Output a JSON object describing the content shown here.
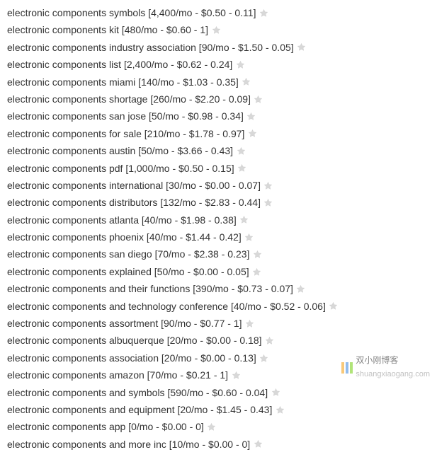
{
  "keywords": [
    {
      "term": "electronic components symbols",
      "volume": "4,400",
      "cpc": "0.50",
      "comp": "0.11"
    },
    {
      "term": "electronic components kit",
      "volume": "480",
      "cpc": "0.60",
      "comp": "1"
    },
    {
      "term": "electronic components industry association",
      "volume": "90",
      "cpc": "1.50",
      "comp": "0.05"
    },
    {
      "term": "electronic components list",
      "volume": "2,400",
      "cpc": "0.62",
      "comp": "0.24"
    },
    {
      "term": "electronic components miami",
      "volume": "140",
      "cpc": "1.03",
      "comp": "0.35"
    },
    {
      "term": "electronic components shortage",
      "volume": "260",
      "cpc": "2.20",
      "comp": "0.09"
    },
    {
      "term": "electronic components san jose",
      "volume": "50",
      "cpc": "0.98",
      "comp": "0.34"
    },
    {
      "term": "electronic components for sale",
      "volume": "210",
      "cpc": "1.78",
      "comp": "0.97"
    },
    {
      "term": "electronic components austin",
      "volume": "50",
      "cpc": "3.66",
      "comp": "0.43"
    },
    {
      "term": "electronic components pdf",
      "volume": "1,000",
      "cpc": "0.50",
      "comp": "0.15"
    },
    {
      "term": "electronic components international",
      "volume": "30",
      "cpc": "0.00",
      "comp": "0.07"
    },
    {
      "term": "electronic components distributors",
      "volume": "132",
      "cpc": "2.83",
      "comp": "0.44"
    },
    {
      "term": "electronic components atlanta",
      "volume": "40",
      "cpc": "1.98",
      "comp": "0.38"
    },
    {
      "term": "electronic components phoenix",
      "volume": "40",
      "cpc": "1.44",
      "comp": "0.42"
    },
    {
      "term": "electronic components san diego",
      "volume": "70",
      "cpc": "2.38",
      "comp": "0.23"
    },
    {
      "term": "electronic components explained",
      "volume": "50",
      "cpc": "0.00",
      "comp": "0.05"
    },
    {
      "term": "electronic components and their functions",
      "volume": "390",
      "cpc": "0.73",
      "comp": "0.07"
    },
    {
      "term": "electronic components and technology conference",
      "volume": "40",
      "cpc": "0.52",
      "comp": "0.06"
    },
    {
      "term": "electronic components assortment",
      "volume": "90",
      "cpc": "0.77",
      "comp": "1"
    },
    {
      "term": "electronic components albuquerque",
      "volume": "20",
      "cpc": "0.00",
      "comp": "0.18"
    },
    {
      "term": "electronic components association",
      "volume": "20",
      "cpc": "0.00",
      "comp": "0.13"
    },
    {
      "term": "electronic components amazon",
      "volume": "70",
      "cpc": "0.21",
      "comp": "1"
    },
    {
      "term": "electronic components and symbols",
      "volume": "590",
      "cpc": "0.60",
      "comp": "0.04"
    },
    {
      "term": "electronic components and equipment",
      "volume": "20",
      "cpc": "1.45",
      "comp": "0.43"
    },
    {
      "term": "electronic components app",
      "volume": "0",
      "cpc": "0.00",
      "comp": "0"
    },
    {
      "term": "electronic components and more inc",
      "volume": "10",
      "cpc": "0.00",
      "comp": "0"
    }
  ],
  "star_colors": {
    "fill": "#d8d8d8",
    "stroke": "#b8b8b8"
  },
  "watermark": {
    "text": "双小刚博客",
    "subtext": "shuangxiaogang.com",
    "bar_colors": [
      "#f5a623",
      "#4a90e2",
      "#7ed321"
    ]
  }
}
